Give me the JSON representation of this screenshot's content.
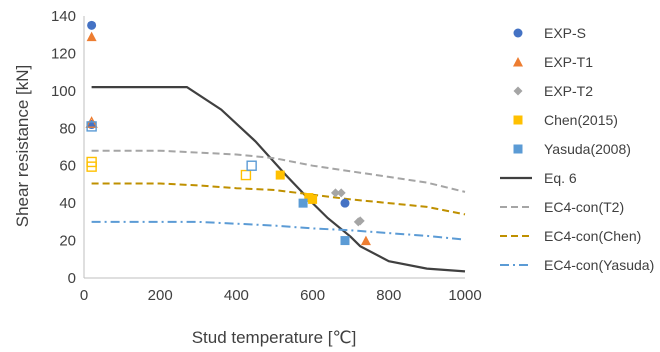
{
  "chart_data": {
    "type": "scatter",
    "xlabel": "Stud temperature [℃]",
    "ylabel": "Shear resistance [kN]",
    "xlim": [
      0,
      1000
    ],
    "ylim": [
      0,
      140
    ],
    "xticks": [
      "0",
      "200",
      "400",
      "600",
      "800",
      "1000"
    ],
    "yticks": [
      "0",
      "20",
      "40",
      "60",
      "80",
      "100",
      "120",
      "140"
    ],
    "grid": false,
    "legend_position": "right",
    "series": [
      {
        "name": "EXP-S",
        "kind": "marker",
        "marker": "circle",
        "filled": true,
        "color": "#4472C4",
        "points": [
          [
            20,
            135
          ],
          [
            20,
            82
          ],
          [
            685,
            40
          ]
        ]
      },
      {
        "name": "EXP-T1",
        "kind": "marker",
        "marker": "triangle",
        "filled": true,
        "color": "#ED7D31",
        "points": [
          [
            20,
            129
          ],
          [
            740,
            20
          ]
        ],
        "hollow_points": [
          [
            20,
            83
          ]
        ]
      },
      {
        "name": "EXP-T2",
        "kind": "marker",
        "marker": "diamond",
        "filled": true,
        "color": "#A5A5A5",
        "points": [
          [
            660,
            45.5
          ],
          [
            675,
            45.5
          ],
          [
            720,
            30
          ],
          [
            725,
            30.5
          ]
        ]
      },
      {
        "name": "Chen(2015)",
        "kind": "marker",
        "marker": "square",
        "filled": true,
        "color": "#FFC000",
        "points": [
          [
            515,
            55
          ],
          [
            590,
            43
          ],
          [
            600,
            42
          ]
        ],
        "hollow_points": [
          [
            20,
            62
          ],
          [
            20,
            59.5
          ],
          [
            425,
            55
          ]
        ]
      },
      {
        "name": "Yasuda(2008)",
        "kind": "marker",
        "marker": "square",
        "filled": true,
        "color": "#5B9BD5",
        "points": [
          [
            575,
            40
          ],
          [
            685,
            20
          ]
        ],
        "hollow_points": [
          [
            20,
            81
          ],
          [
            440,
            60
          ]
        ]
      },
      {
        "name": "Eq. 6",
        "kind": "line",
        "dash": "solid",
        "color": "#404040",
        "width": 2.2,
        "points": [
          [
            20,
            102
          ],
          [
            270,
            102
          ],
          [
            360,
            90
          ],
          [
            450,
            73
          ],
          [
            530,
            55
          ],
          [
            600,
            40
          ],
          [
            640,
            32
          ],
          [
            700,
            22
          ],
          [
            725,
            17
          ],
          [
            800,
            9
          ],
          [
            900,
            5
          ],
          [
            1000,
            3.5
          ]
        ]
      },
      {
        "name": "EC4-con(T2)",
        "kind": "line",
        "dash": "dashed",
        "color": "#A5A5A5",
        "width": 2,
        "points": [
          [
            20,
            68
          ],
          [
            200,
            68
          ],
          [
            300,
            67
          ],
          [
            400,
            66
          ],
          [
            500,
            64
          ],
          [
            600,
            60
          ],
          [
            700,
            57
          ],
          [
            800,
            54
          ],
          [
            900,
            51
          ],
          [
            1000,
            46
          ]
        ]
      },
      {
        "name": "EC4-con(Chen)",
        "kind": "line",
        "dash": "dashed",
        "color": "#BF9000",
        "width": 2,
        "points": [
          [
            20,
            50.5
          ],
          [
            200,
            50.5
          ],
          [
            300,
            49.5
          ],
          [
            400,
            48
          ],
          [
            500,
            47
          ],
          [
            600,
            44.5
          ],
          [
            700,
            42
          ],
          [
            800,
            40
          ],
          [
            900,
            38
          ],
          [
            1000,
            34
          ]
        ]
      },
      {
        "name": "EC4-con(Yasuda)",
        "kind": "line",
        "dash": "dashdot",
        "color": "#5B9BD5",
        "width": 2,
        "points": [
          [
            20,
            30
          ],
          [
            200,
            30
          ],
          [
            300,
            30
          ],
          [
            400,
            29
          ],
          [
            500,
            28
          ],
          [
            600,
            26.5
          ],
          [
            700,
            25.5
          ],
          [
            800,
            24
          ],
          [
            900,
            22.5
          ],
          [
            1000,
            20.5
          ]
        ]
      }
    ]
  }
}
